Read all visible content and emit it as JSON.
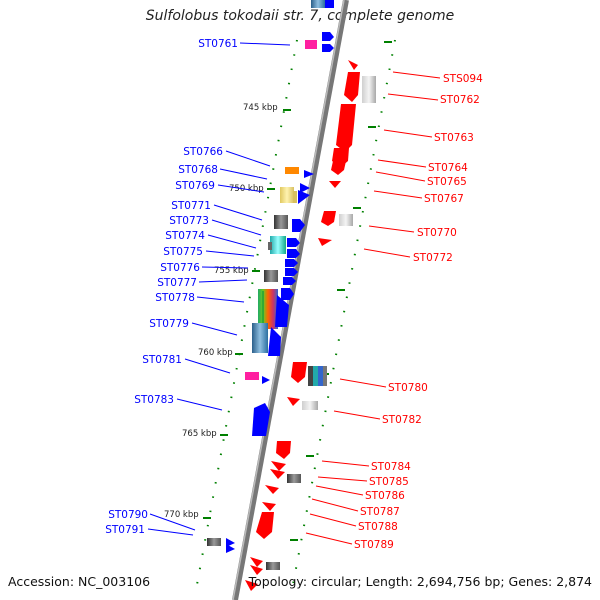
{
  "title": "Sulfolobus tokodaii str. 7, complete genome",
  "footer": {
    "accession": "Accession: NC_003106",
    "summary": "Topology: circular; Length: 2,694,756 bp; Genes: 2,874"
  },
  "colors": {
    "forward_strand": "#0000ff",
    "reverse_strand": "#ff0000",
    "backbone": "#808080",
    "tick": "#008000"
  },
  "scale_marks": [
    "745 kbp",
    "750 kbp",
    "755 kbp",
    "760 kbp",
    "765 kbp",
    "770 kbp"
  ],
  "left_genes": [
    "ST0761",
    "ST0766",
    "ST0768",
    "ST0769",
    "ST0771",
    "ST0773",
    "ST0774",
    "ST0775",
    "ST0776",
    "ST0777",
    "ST0778",
    "ST0779",
    "ST0781",
    "ST0783",
    "ST0790",
    "ST0791"
  ],
  "right_genes": [
    "STS094",
    "ST0762",
    "ST0763",
    "ST0764",
    "ST0765",
    "ST0767",
    "ST0770",
    "ST0772",
    "ST0780",
    "ST0782",
    "ST0784",
    "ST0785",
    "ST0786",
    "ST0787",
    "ST0788",
    "ST0789"
  ]
}
